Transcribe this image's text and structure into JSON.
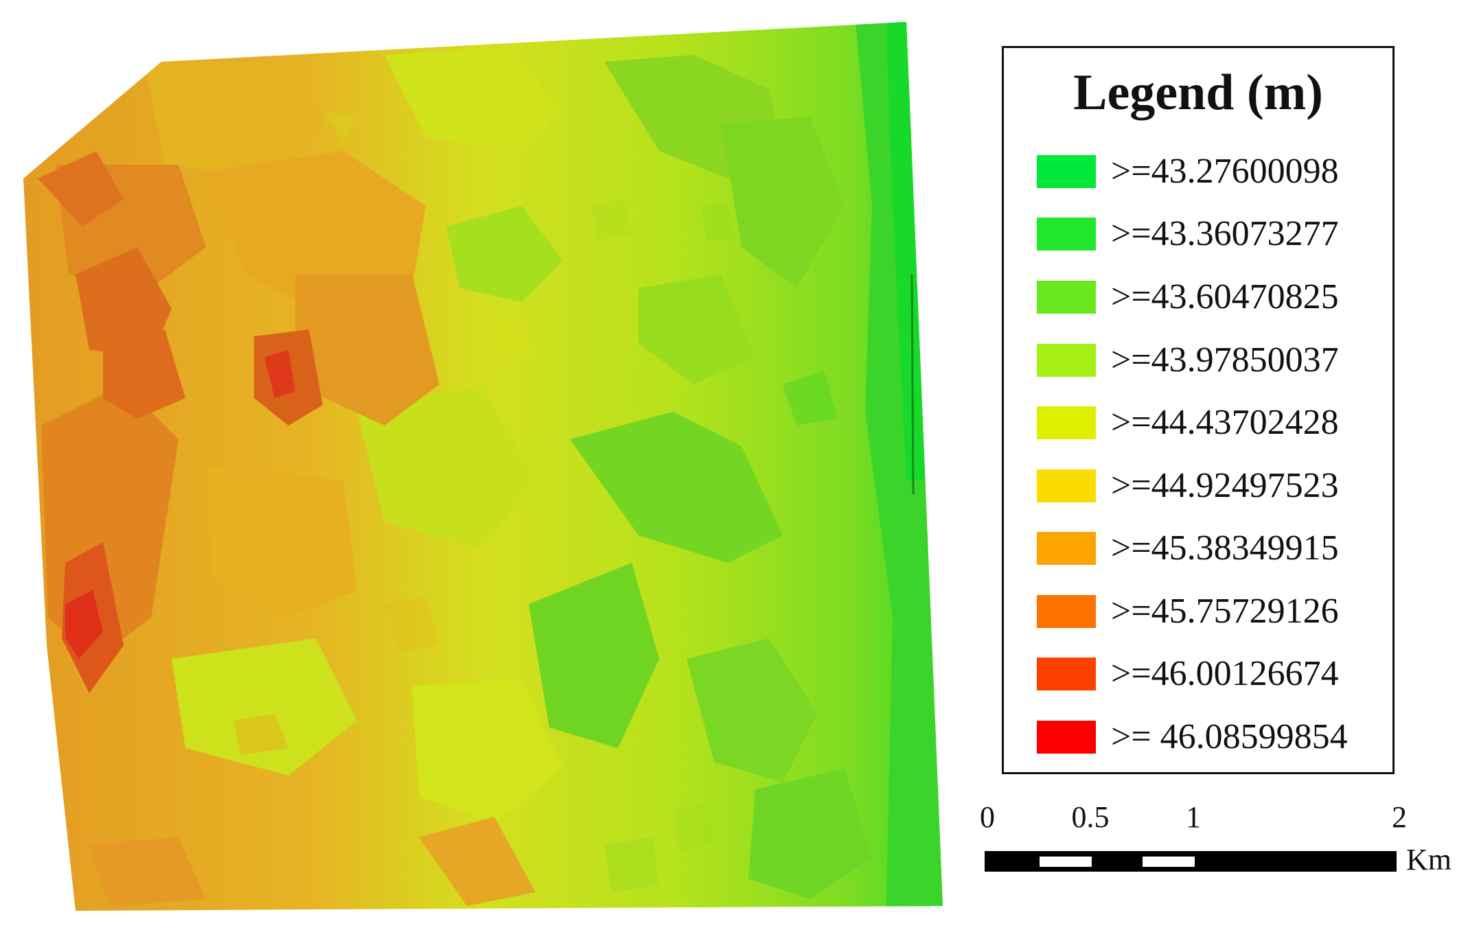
{
  "legend": {
    "title": "Legend (m)",
    "items": [
      {
        "label": ">=43.27600098",
        "color": "#00e83a"
      },
      {
        "label": ">=43.36073277",
        "color": "#22e82c"
      },
      {
        "label": ">=43.60470825",
        "color": "#6ae81e"
      },
      {
        "label": ">=43.97850037",
        "color": "#a5ee16"
      },
      {
        "label": ">=44.43702428",
        "color": "#dcf000"
      },
      {
        "label": ">=44.92497523",
        "color": "#fadc00"
      },
      {
        "label": ">=45.38349915",
        "color": "#fca400"
      },
      {
        "label": ">=45.75729126",
        "color": "#fc7300"
      },
      {
        "label": ">=46.00126674",
        "color": "#fc4000"
      },
      {
        "label": ">= 46.08599854",
        "color": "#fc0000"
      }
    ]
  },
  "scale_bar": {
    "ticks": [
      "0",
      "0.5",
      "1",
      "2"
    ],
    "unit": "Km"
  },
  "map": {
    "colors": {
      "low": "#1fd42a",
      "mid_low": "#9ee21b",
      "mid": "#d2e519",
      "mid_high": "#e8b11c",
      "high": "#df8a1e",
      "peak": "#e0381b"
    }
  }
}
